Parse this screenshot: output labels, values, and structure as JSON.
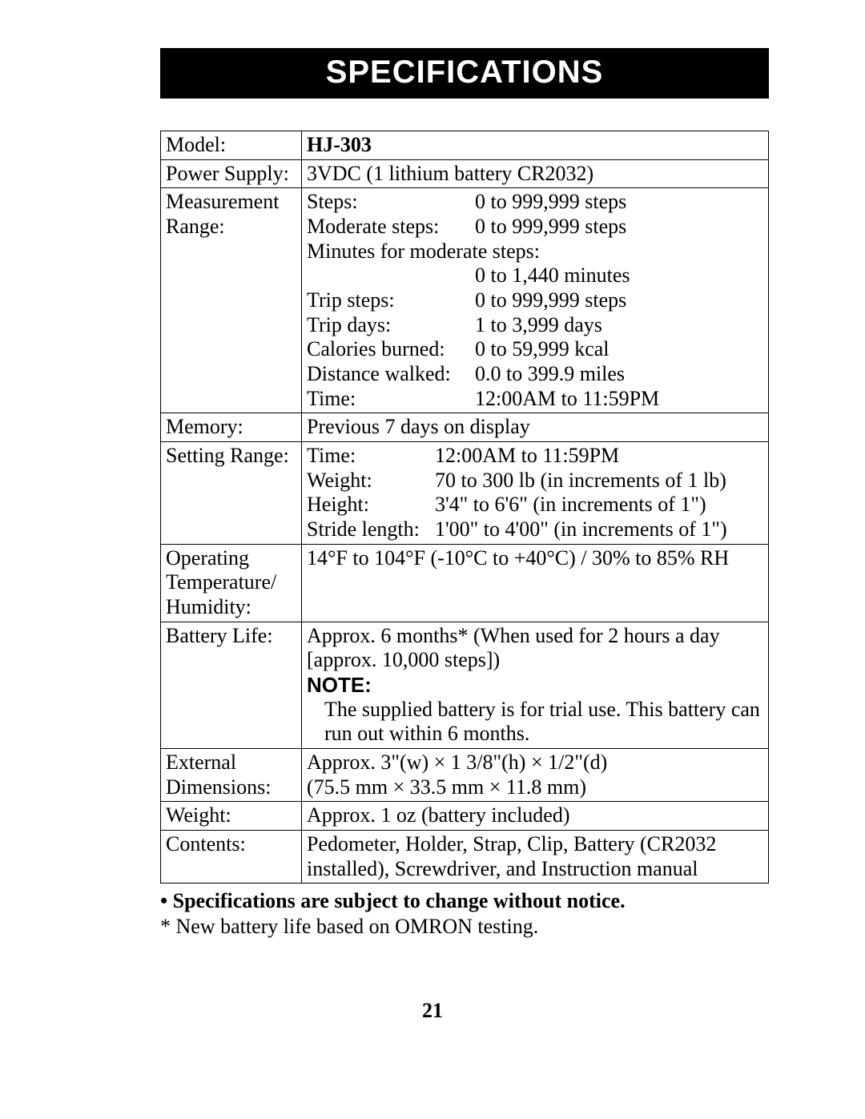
{
  "banner": "SPECIFICATIONS",
  "rows": {
    "model": {
      "label": "Model:",
      "value": "HJ-303"
    },
    "power_supply": {
      "label": "Power Supply:",
      "value": "3VDC (1 lithium battery CR2032)"
    },
    "measurement_range": {
      "label": "Measurement Range:",
      "items": [
        {
          "k": "Steps:",
          "v": "0 to 999,999 steps"
        },
        {
          "k": "Moderate steps:",
          "v": "0 to 999,999 steps"
        },
        {
          "k": "Minutes for moderate steps:",
          "v": ""
        },
        {
          "k": "",
          "v": "0 to 1,440 minutes"
        },
        {
          "k": "Trip steps:",
          "v": "0 to 999,999 steps"
        },
        {
          "k": "Trip days:",
          "v": "1 to 3,999 days"
        },
        {
          "k": "Calories burned:",
          "v": "0 to 59,999 kcal"
        },
        {
          "k": "Distance walked:",
          "v": "0.0 to 399.9 miles"
        },
        {
          "k": "Time:",
          "v": "12:00AM to 11:59PM"
        }
      ]
    },
    "memory": {
      "label": "Memory:",
      "value": "Previous 7 days on display"
    },
    "setting_range": {
      "label": "Setting Range:",
      "items": [
        {
          "k": "Time:",
          "v": "12:00AM to 11:59PM"
        },
        {
          "k": "Weight:",
          "v": "70 to 300 lb (in increments of 1 lb)"
        },
        {
          "k": "Height:",
          "v": "3'4\" to 6'6\" (in increments of 1\")"
        },
        {
          "k": "Stride length:",
          "v": "1'00\" to 4'00\" (in increments of 1\")"
        }
      ]
    },
    "operating": {
      "label": "Operating Temperature/ Humidity:",
      "value": "14°F to 104°F (-10°C to +40°C) / 30% to 85% RH"
    },
    "battery_life": {
      "label": "Battery Life:",
      "line1": "Approx. 6 months* (When used for 2 hours a day [approx. 10,000 steps])",
      "note_label": "NOTE:",
      "note_text": "The supplied battery is for trial use. This battery can run out within 6 months."
    },
    "dimensions": {
      "label": "External Dimensions:",
      "line1": "Approx. 3\"(w) × 1 3/8\"(h) × 1/2\"(d)",
      "line2": "(75.5 mm × 33.5 mm × 11.8 mm)"
    },
    "weight": {
      "label": "Weight:",
      "value": "Approx. 1 oz (battery included)"
    },
    "contents": {
      "label": "Contents:",
      "value": "Pedometer, Holder, Strap, Clip, Battery (CR2032 installed), Screwdriver, and Instruction manual"
    }
  },
  "footnotes": {
    "bullet": "• Specifications are subject to change without notice.",
    "asterisk": "* New battery life based on OMRON testing."
  },
  "page_number": "21"
}
